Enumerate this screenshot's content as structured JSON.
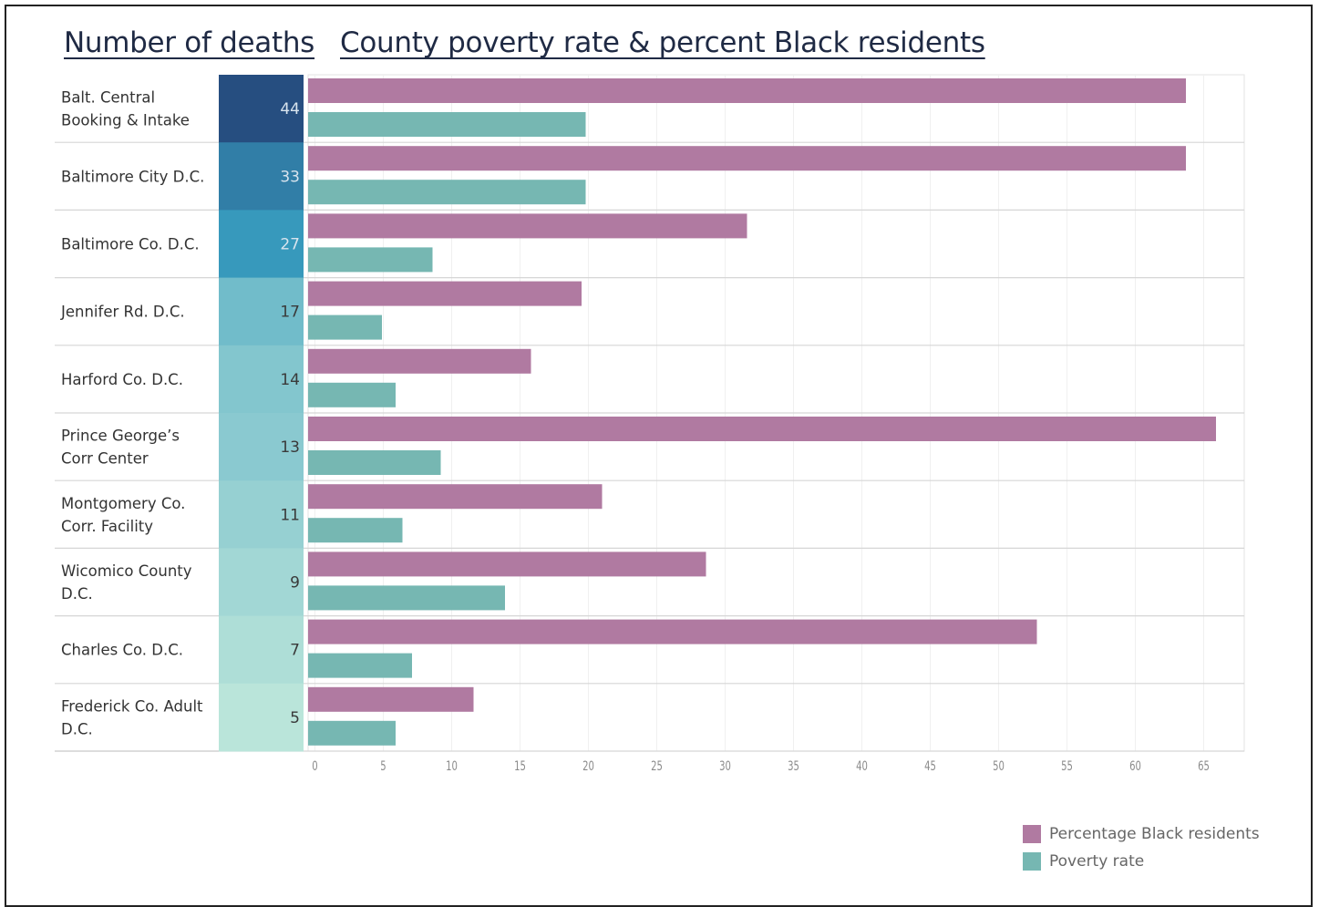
{
  "titles": {
    "left": "Number of deaths",
    "right": "County poverty rate & percent Black residents"
  },
  "colors": {
    "black_pct": "#b07aa1",
    "poverty": "#76b7b2",
    "frame": "#222222"
  },
  "legend": {
    "items": [
      {
        "label": "Percentage Black residents",
        "color": "#b07aa1"
      },
      {
        "label": "Poverty rate",
        "color": "#76b7b2"
      }
    ]
  },
  "chart_data": {
    "type": "bar",
    "orientation": "horizontal",
    "title": "County poverty rate & percent Black residents",
    "facilities": [
      "Balt. Central Booking & Intake",
      "Baltimore City D.C.",
      "Baltimore Co. D.C.",
      "Jennifer Rd. D.C.",
      "Harford Co. D.C.",
      "Prince George's Corr Center",
      "Montgomery Co. Corr. Facility",
      "Wicomico County D.C.",
      "Charles Co. D.C.",
      "Frederick Co. Adult D.C."
    ],
    "facility_label_lines": [
      [
        "Balt. Central",
        "Booking & Intake"
      ],
      [
        "Baltimore City D.C."
      ],
      [
        "Baltimore Co. D.C."
      ],
      [
        "Jennifer Rd. D.C."
      ],
      [
        "Harford Co. D.C."
      ],
      [
        "Prince George’s",
        "Corr Center"
      ],
      [
        "Montgomery Co.",
        "Corr. Facility"
      ],
      [
        "Wicomico County",
        "D.C."
      ],
      [
        "Charles Co. D.C."
      ],
      [
        "Frederick Co. Adult",
        "D.C."
      ]
    ],
    "deaths": [
      44,
      33,
      27,
      17,
      14,
      13,
      11,
      9,
      7,
      5
    ],
    "series": [
      {
        "name": "Percentage Black residents",
        "values": [
          63.7,
          63.7,
          31.6,
          19.5,
          15.8,
          65.9,
          21.0,
          28.6,
          52.8,
          11.6
        ]
      },
      {
        "name": "Poverty rate",
        "values": [
          19.8,
          19.8,
          8.6,
          4.9,
          5.9,
          9.2,
          6.4,
          13.9,
          7.1,
          5.9
        ]
      }
    ],
    "xlim": [
      0,
      68
    ],
    "xticks": [
      0,
      5,
      10,
      15,
      20,
      25,
      30,
      35,
      40,
      45,
      50,
      55,
      60,
      65
    ],
    "grid": "vertical",
    "legend_position": "bottom-right"
  }
}
